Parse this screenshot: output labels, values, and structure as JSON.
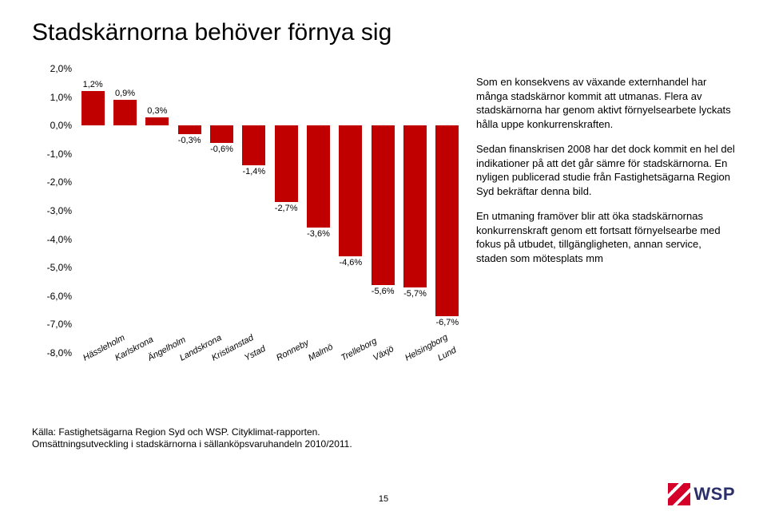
{
  "title": "Stadskärnorna behöver förnya sig",
  "chart": {
    "type": "bar",
    "ymin": -8,
    "ymax": 2,
    "ytick_labels": [
      "2,0%",
      "1,0%",
      "0,0%",
      "-1,0%",
      "-2,0%",
      "-3,0%",
      "-4,0%",
      "-5,0%",
      "-6,0%",
      "-7,0%",
      "-8,0%"
    ],
    "categories": [
      "Hässleholm",
      "Karlskrona",
      "Ängelholm",
      "Landskrona",
      "Kristianstad",
      "Ystad",
      "Ronneby",
      "Malmö",
      "Trelleborg",
      "Växjö",
      "Helsingborg",
      "Lund"
    ],
    "values": [
      1.2,
      0.9,
      0.3,
      -0.3,
      -0.6,
      -1.4,
      -2.7,
      -3.6,
      -4.6,
      -5.6,
      -5.7,
      -6.7
    ],
    "value_labels": [
      "1,2%",
      "0,9%",
      "0,3%",
      "-0,3%",
      "-0,6%",
      "-1,4%",
      "-2,7%",
      "-3,6%",
      "-4,6%",
      "-5,6%",
      "-5,7%",
      "-6,7%"
    ],
    "bar_color": "#c00000",
    "label_fontsize": 11,
    "background_color": "#ffffff"
  },
  "paragraphs": [
    "Som en konsekvens av växande externhandel har många stadskärnor kommit att utmanas. Flera av stadskärnorna har genom aktivt förnyelsearbete lyckats hålla uppe konkurrenskraften.",
    "Sedan finanskrisen 2008 har det dock kommit en hel del indikationer på att det går sämre för stadskärnorna. En nyligen publicerad studie från Fastighetsägarna Region Syd bekräftar denna bild.",
    "En utmaning framöver blir att öka stadskärnornas konkurrenskraft genom ett fortsatt förnyelsearbe med fokus på utbudet, tillgängligheten, annan service, staden som mötesplats mm"
  ],
  "source_line1": "Källa: Fastighetsägarna  Region Syd och WSP. Cityklimat-rapporten.",
  "source_line2": "Omsättningsutveckling i stadskärnorna i sällanköpsvaruhandeln 2010/2011.",
  "page_number": "15",
  "logo_text": "WSP"
}
